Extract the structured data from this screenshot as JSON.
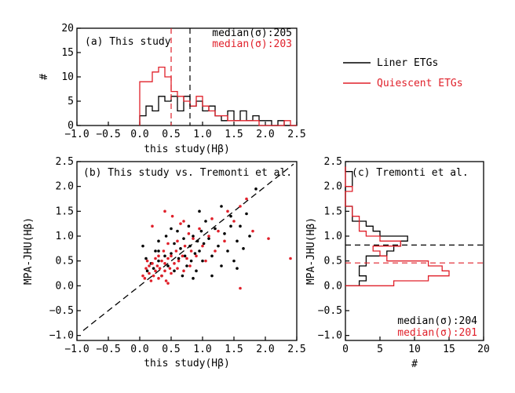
{
  "colors": {
    "liner": "#000000",
    "quiescent": "#e0202a"
  },
  "legend": {
    "liner": "Liner ETGs",
    "quiescent": "Quiescent ETGs"
  },
  "chart_data": [
    {
      "id": "a",
      "type": "bar",
      "title": "(a) This study",
      "xlabel": "this study(Hβ)",
      "ylabel": "#",
      "xlim": [
        -1.0,
        2.5
      ],
      "ylim": [
        0,
        20
      ],
      "xticks": [
        "−1.0",
        "−0.5",
        "0.0",
        "0.5",
        "1.0",
        "1.5",
        "2.0",
        "2.5"
      ],
      "yticks": [
        "0",
        "5",
        "10",
        "15",
        "20"
      ],
      "median_liner_text": "median(σ):205",
      "median_quiescent_text": "median(σ):203",
      "median_liner_value": 0.8,
      "median_quiescent_value": 0.5,
      "bin_width": 0.1,
      "bin_start": 0.0,
      "series": [
        {
          "name": "Liner ETGs",
          "values": [
            2,
            4,
            3,
            6,
            5,
            6,
            3,
            6,
            4,
            5,
            3,
            4,
            2,
            1,
            3,
            1,
            3,
            1,
            2,
            1,
            1,
            0,
            1,
            0,
            0
          ]
        },
        {
          "name": "Quiescent ETGs",
          "values": [
            9,
            9,
            11,
            12,
            10,
            7,
            6,
            5,
            4,
            6,
            4,
            3,
            2,
            2,
            1,
            1,
            1,
            1,
            1,
            0,
            0,
            0,
            0,
            1,
            0
          ]
        }
      ]
    },
    {
      "id": "b",
      "type": "scatter",
      "title": "(b) This study vs. Tremonti et al.",
      "xlabel": "this study(Hβ)",
      "ylabel": "MPA-JHU(Hβ)",
      "xlim": [
        -1.0,
        2.5
      ],
      "ylim": [
        -1.1,
        2.5
      ],
      "xticks": [
        "−1.0",
        "−0.5",
        "0.0",
        "0.5",
        "1.0",
        "1.5",
        "2.0",
        "2.5"
      ],
      "yticks": [
        "−1.0",
        "−0.5",
        "0.0",
        "0.5",
        "1.0",
        "1.5",
        "2.0",
        "2.5"
      ],
      "one_to_one": true,
      "series": [
        {
          "name": "Liner ETGs",
          "points": [
            [
              0.05,
              0.8
            ],
            [
              0.1,
              0.55
            ],
            [
              0.12,
              0.3
            ],
            [
              0.18,
              0.45
            ],
            [
              0.22,
              0.35
            ],
            [
              0.25,
              0.7
            ],
            [
              0.3,
              0.5
            ],
            [
              0.3,
              0.9
            ],
            [
              0.35,
              0.2
            ],
            [
              0.4,
              0.6
            ],
            [
              0.42,
              1.0
            ],
            [
              0.45,
              0.4
            ],
            [
              0.5,
              0.65
            ],
            [
              0.55,
              0.3
            ],
            [
              0.55,
              0.85
            ],
            [
              0.6,
              1.1
            ],
            [
              0.62,
              0.55
            ],
            [
              0.65,
              0.75
            ],
            [
              0.68,
              0.2
            ],
            [
              0.7,
              0.95
            ],
            [
              0.72,
              0.6
            ],
            [
              0.75,
              0.4
            ],
            [
              0.78,
              1.2
            ],
            [
              0.8,
              0.8
            ],
            [
              0.82,
              0.5
            ],
            [
              0.85,
              1.0
            ],
            [
              0.88,
              0.65
            ],
            [
              0.9,
              0.3
            ],
            [
              0.92,
              0.9
            ],
            [
              0.95,
              0.7
            ],
            [
              0.98,
              1.1
            ],
            [
              1.0,
              0.5
            ],
            [
              1.02,
              0.85
            ],
            [
              1.05,
              1.3
            ],
            [
              1.1,
              0.95
            ],
            [
              1.15,
              0.6
            ],
            [
              1.2,
              1.15
            ],
            [
              1.25,
              0.8
            ],
            [
              1.3,
              0.4
            ],
            [
              1.35,
              1.05
            ],
            [
              1.4,
              0.7
            ],
            [
              1.45,
              1.4
            ],
            [
              1.5,
              0.5
            ],
            [
              1.55,
              0.9
            ],
            [
              1.55,
              0.35
            ],
            [
              1.6,
              1.2
            ],
            [
              1.65,
              0.75
            ],
            [
              1.7,
              1.45
            ],
            [
              1.75,
              1.0
            ],
            [
              1.85,
              1.95
            ],
            [
              1.45,
              1.2
            ],
            [
              1.3,
              1.6
            ],
            [
              0.95,
              1.5
            ],
            [
              0.5,
              1.15
            ],
            [
              0.3,
              0.7
            ],
            [
              0.85,
              0.15
            ],
            [
              1.15,
              0.2
            ]
          ]
        },
        {
          "name": "Quiescent ETGs",
          "points": [
            [
              0.05,
              0.2
            ],
            [
              0.08,
              0.15
            ],
            [
              0.1,
              0.35
            ],
            [
              0.12,
              0.5
            ],
            [
              0.15,
              0.25
            ],
            [
              0.15,
              0.4
            ],
            [
              0.18,
              0.1
            ],
            [
              0.2,
              0.45
            ],
            [
              0.22,
              0.2
            ],
            [
              0.25,
              0.55
            ],
            [
              0.25,
              0.3
            ],
            [
              0.28,
              0.4
            ],
            [
              0.3,
              0.15
            ],
            [
              0.3,
              0.6
            ],
            [
              0.32,
              0.35
            ],
            [
              0.35,
              0.5
            ],
            [
              0.35,
              0.2
            ],
            [
              0.38,
              0.7
            ],
            [
              0.4,
              0.3
            ],
            [
              0.4,
              0.45
            ],
            [
              0.42,
              0.1
            ],
            [
              0.45,
              0.55
            ],
            [
              0.45,
              0.85
            ],
            [
              0.48,
              0.35
            ],
            [
              0.5,
              0.6
            ],
            [
              0.5,
              0.25
            ],
            [
              0.52,
              1.4
            ],
            [
              0.55,
              0.45
            ],
            [
              0.58,
              0.7
            ],
            [
              0.6,
              0.35
            ],
            [
              0.6,
              0.9
            ],
            [
              0.62,
              0.5
            ],
            [
              0.65,
              1.25
            ],
            [
              0.68,
              0.6
            ],
            [
              0.7,
              0.3
            ],
            [
              0.72,
              0.8
            ],
            [
              0.75,
              0.55
            ],
            [
              0.78,
              1.05
            ],
            [
              0.8,
              0.4
            ],
            [
              0.82,
              0.7
            ],
            [
              0.85,
              0.95
            ],
            [
              0.9,
              0.6
            ],
            [
              0.95,
              1.15
            ],
            [
              1.0,
              0.8
            ],
            [
              1.05,
              0.5
            ],
            [
              1.1,
              1.0
            ],
            [
              1.15,
              1.35
            ],
            [
              1.2,
              0.7
            ],
            [
              1.25,
              1.1
            ],
            [
              1.35,
              0.9
            ],
            [
              1.4,
              1.5
            ],
            [
              1.5,
              1.3
            ],
            [
              1.6,
              1.6
            ],
            [
              1.7,
              1.75
            ],
            [
              1.8,
              1.1
            ],
            [
              2.05,
              0.95
            ],
            [
              2.4,
              0.55
            ],
            [
              0.4,
              1.5
            ],
            [
              0.7,
              1.3
            ],
            [
              0.2,
              1.2
            ],
            [
              0.45,
              0.05
            ],
            [
              1.6,
              -0.05
            ]
          ]
        }
      ]
    },
    {
      "id": "c",
      "type": "bar",
      "orientation": "horizontal",
      "title": "(c) Tremonti et al.",
      "xlabel": "#",
      "ylabel": "MPA-JHU(Hβ)",
      "xlim": [
        0,
        20
      ],
      "ylim": [
        -1.1,
        2.5
      ],
      "xticks": [
        "0",
        "5",
        "10",
        "15",
        "20"
      ],
      "yticks": [
        "−1.0",
        "−0.5",
        "0.0",
        "0.5",
        "1.0",
        "1.5",
        "2.0",
        "2.5"
      ],
      "median_liner_text": "median(σ):204",
      "median_quiescent_text": "median(σ):201",
      "median_liner_value": 0.82,
      "median_quiescent_value": 0.46,
      "bin_width": 0.1,
      "bin_start": 0.0,
      "series": [
        {
          "name": "Liner ETGs",
          "values": [
            2,
            3,
            2,
            2,
            3,
            3,
            6,
            7,
            8,
            9,
            5,
            4,
            3,
            1,
            1,
            1,
            0,
            0,
            0,
            0,
            1,
            1,
            1,
            0
          ]
        },
        {
          "name": "Quiescent ETGs",
          "values": [
            7,
            12,
            15,
            14,
            12,
            6,
            5,
            4,
            8,
            5,
            3,
            2,
            2,
            2,
            1,
            1,
            0,
            0,
            0,
            1,
            0,
            0,
            0,
            0
          ]
        }
      ]
    }
  ]
}
